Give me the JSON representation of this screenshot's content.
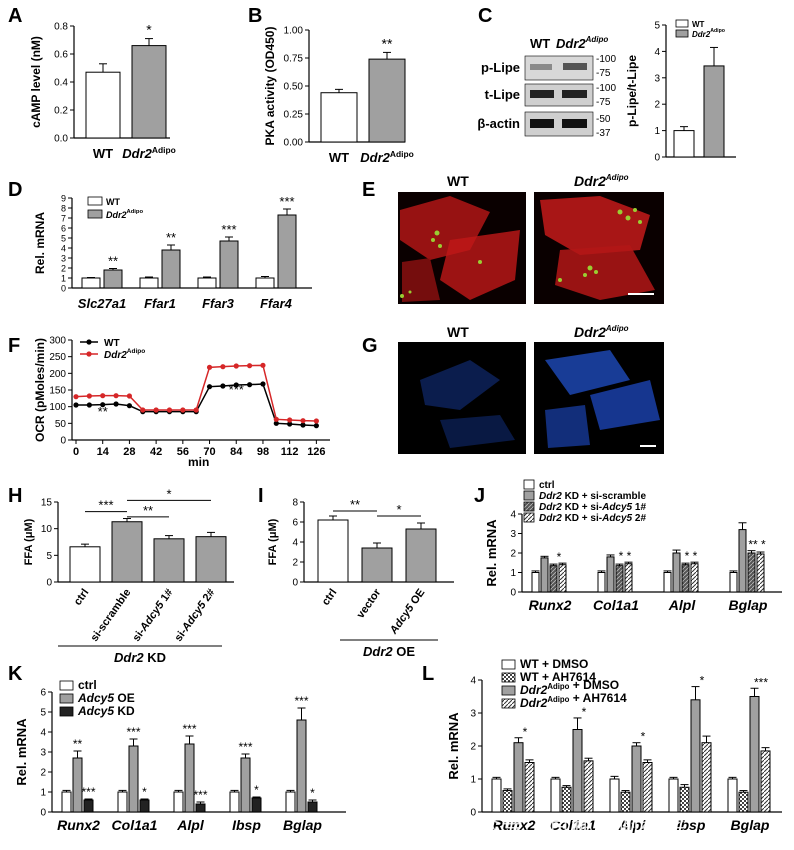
{
  "panels": [
    {
      "id": "A",
      "label": "A"
    },
    {
      "id": "B",
      "label": "B"
    },
    {
      "id": "C",
      "label": "C"
    },
    {
      "id": "D",
      "label": "D"
    },
    {
      "id": "E",
      "label": "E"
    },
    {
      "id": "F",
      "label": "F"
    },
    {
      "id": "G",
      "label": "G"
    },
    {
      "id": "H",
      "label": "H"
    },
    {
      "id": "I",
      "label": "I"
    },
    {
      "id": "J",
      "label": "J"
    },
    {
      "id": "K",
      "label": "K"
    },
    {
      "id": "L",
      "label": "L"
    }
  ],
  "strings": {
    "wt": "WT",
    "ddr2": "Ddr2",
    "adipo": "Adipo",
    "min": "min"
  },
  "blot": {
    "rows": [
      "p-Lipe",
      "t-Lipe",
      "β-actin"
    ],
    "markers": [
      [
        "-100",
        "-75"
      ],
      [
        "-100",
        "-75"
      ],
      [
        "-50",
        "-37"
      ]
    ]
  },
  "images": {
    "scale_bar": true
  },
  "watermark": "众号 · 百趣代谢组学",
  "colors": {
    "open": "#ffffff",
    "grey": "#a0a0a0",
    "dark": "#222222",
    "red": "#d62728",
    "black": "#000000",
    "blue": "#1f4fbf"
  },
  "chart_data": [
    {
      "id": "A",
      "type": "bar",
      "categories": [
        "WT",
        "Ddr2Adipo"
      ],
      "values": [
        0.47,
        0.66
      ],
      "errors": [
        0.06,
        0.05
      ],
      "ylabel": "cAMP level (nM)",
      "ylim": [
        0,
        0.8
      ],
      "yticks": [
        0.0,
        0.2,
        0.4,
        0.6,
        0.8
      ],
      "sig": [
        null,
        "*"
      ],
      "fills": [
        "open",
        "grey"
      ]
    },
    {
      "id": "B",
      "type": "bar",
      "categories": [
        "WT",
        "Ddr2Adipo"
      ],
      "values": [
        0.44,
        0.74
      ],
      "errors": [
        0.03,
        0.06
      ],
      "ylabel": "PKA activity (OD450)",
      "ylim": [
        0,
        1.0
      ],
      "yticks": [
        0.0,
        0.25,
        0.5,
        0.75,
        1.0
      ],
      "sig": [
        null,
        "**"
      ],
      "fills": [
        "open",
        "grey"
      ]
    },
    {
      "id": "C",
      "type": "bar",
      "categories": [
        "WT",
        "Ddr2Adipo"
      ],
      "values": [
        1.0,
        3.45
      ],
      "errors": [
        0.15,
        0.7
      ],
      "ylabel": "p-Lipe/t-Lipe",
      "ylim": [
        0,
        5
      ],
      "yticks": [
        0,
        1,
        2,
        3,
        4,
        5
      ],
      "legend": [
        "WT",
        "Ddr2Adipo"
      ],
      "fills": [
        "open",
        "grey"
      ]
    },
    {
      "id": "D",
      "type": "bar",
      "categories": [
        "Slc27a1",
        "Ffar1",
        "Ffar3",
        "Ffar4"
      ],
      "series": [
        {
          "name": "WT",
          "values": [
            1.0,
            1.0,
            1.0,
            1.0
          ],
          "errors": [
            0.05,
            0.1,
            0.1,
            0.15
          ]
        },
        {
          "name": "Ddr2Adipo",
          "values": [
            1.8,
            3.8,
            4.7,
            7.3
          ],
          "errors": [
            0.15,
            0.5,
            0.4,
            0.6
          ]
        }
      ],
      "ylabel": "Rel. mRNA",
      "ylim": [
        0,
        9
      ],
      "yticks": [
        0,
        1,
        2,
        3,
        4,
        5,
        6,
        7,
        8,
        9
      ],
      "sig": [
        "**",
        "**",
        "***",
        "***"
      ]
    },
    {
      "id": "F",
      "type": "line",
      "ylabel": "OCR (pMoles/min)",
      "xlabel": "min",
      "ylim": [
        0,
        300
      ],
      "yticks": [
        0,
        50,
        100,
        150,
        200,
        250,
        300
      ],
      "xticks": [
        0,
        14,
        28,
        42,
        56,
        70,
        84,
        98,
        112,
        126
      ],
      "series": [
        {
          "name": "WT",
          "x": [
            0,
            7,
            14,
            21,
            28,
            35,
            42,
            49,
            56,
            63,
            70,
            77,
            84,
            91,
            98,
            105,
            112,
            119,
            126
          ],
          "y": [
            105,
            105,
            106,
            108,
            103,
            85,
            85,
            85,
            85,
            85,
            160,
            162,
            165,
            166,
            168,
            50,
            48,
            45,
            43
          ]
        },
        {
          "name": "Ddr2Adipo",
          "x": [
            0,
            7,
            14,
            21,
            28,
            35,
            42,
            49,
            56,
            63,
            70,
            77,
            84,
            91,
            98,
            105,
            112,
            119,
            126
          ],
          "y": [
            130,
            132,
            133,
            133,
            132,
            90,
            90,
            90,
            90,
            90,
            218,
            220,
            222,
            223,
            224,
            62,
            60,
            58,
            57
          ]
        }
      ],
      "annotations": [
        "**",
        "***"
      ]
    },
    {
      "id": "H",
      "type": "bar",
      "categories": [
        "ctrl",
        "si-scramble",
        "si-Adcy5 1#",
        "si-Adcy5 2#"
      ],
      "values": [
        6.6,
        11.3,
        8.1,
        8.5
      ],
      "errors": [
        0.5,
        0.6,
        0.6,
        0.8
      ],
      "ylabel": "FFA (μM)",
      "ylim": [
        0,
        15
      ],
      "yticks": [
        0,
        5,
        10,
        15
      ],
      "fills": [
        "open",
        "grey",
        "grey",
        "grey"
      ],
      "group_label": "Ddr2 KD",
      "sig": [
        "***",
        "**",
        "*"
      ]
    },
    {
      "id": "I",
      "type": "bar",
      "categories": [
        "ctrl",
        "vector",
        "Adcy5 OE"
      ],
      "values": [
        6.2,
        3.4,
        5.3
      ],
      "errors": [
        0.4,
        0.5,
        0.6
      ],
      "ylabel": "FFA (μM)",
      "ylim": [
        0,
        8
      ],
      "yticks": [
        0,
        2,
        4,
        6,
        8
      ],
      "fills": [
        "open",
        "grey",
        "grey"
      ],
      "group_label": "Ddr2 OE",
      "sig": [
        "**",
        "*"
      ]
    },
    {
      "id": "J",
      "type": "bar",
      "categories": [
        "Runx2",
        "Col1a1",
        "Alpl",
        "Bglap"
      ],
      "series": [
        {
          "name": "ctrl",
          "values": [
            1.0,
            1.0,
            1.0,
            1.0
          ],
          "errors": [
            0.08,
            0.08,
            0.08,
            0.08
          ]
        },
        {
          "name": "Ddr2 KD + si-scramble",
          "values": [
            1.75,
            1.8,
            2.0,
            3.2
          ],
          "errors": [
            0.08,
            0.1,
            0.15,
            0.35
          ]
        },
        {
          "name": "Ddr2 KD + si-Adcy5 1#",
          "values": [
            1.35,
            1.35,
            1.4,
            2.0
          ],
          "errors": [
            0.08,
            0.08,
            0.08,
            0.12
          ]
        },
        {
          "name": "Ddr2 KD + si-Adcy5 2#",
          "values": [
            1.4,
            1.45,
            1.45,
            1.95
          ],
          "errors": [
            0.08,
            0.08,
            0.08,
            0.1
          ]
        }
      ],
      "ylabel": "Rel. mRNA",
      "ylim": [
        0,
        4
      ],
      "yticks": [
        0,
        1,
        2,
        3,
        4
      ],
      "sig": [
        "*",
        "* *",
        "* *",
        "** *"
      ]
    },
    {
      "id": "K",
      "type": "bar",
      "categories": [
        "Runx2",
        "Col1a1",
        "Alpl",
        "Ibsp",
        "Bglap"
      ],
      "series": [
        {
          "name": "ctrl",
          "values": [
            1.0,
            1.0,
            1.0,
            1.0,
            1.0
          ],
          "errors": [
            0.08,
            0.08,
            0.08,
            0.08,
            0.08
          ]
        },
        {
          "name": "Adcy5 OE",
          "values": [
            2.7,
            3.3,
            3.4,
            2.7,
            4.6
          ],
          "errors": [
            0.35,
            0.35,
            0.4,
            0.2,
            0.6
          ]
        },
        {
          "name": "Adcy5 KD",
          "values": [
            0.6,
            0.6,
            0.4,
            0.7,
            0.5
          ],
          "errors": [
            0.05,
            0.05,
            0.1,
            0.05,
            0.1
          ]
        }
      ],
      "ylabel": "Rel. mRNA",
      "ylim": [
        0,
        6
      ],
      "yticks": [
        0,
        1,
        2,
        3,
        4,
        5,
        6
      ],
      "sig_hi": [
        "**",
        "***",
        "***",
        "***",
        "***"
      ],
      "sig_lo": [
        "***",
        "*",
        "***",
        "*",
        "*"
      ]
    },
    {
      "id": "L",
      "type": "bar",
      "categories": [
        "Runx2",
        "Col1a1",
        "Alpl",
        "Ibsp",
        "Bglap"
      ],
      "series": [
        {
          "name": "WT + DMSO",
          "values": [
            1.0,
            1.0,
            1.0,
            1.0,
            1.0
          ],
          "errors": [
            0.05,
            0.05,
            0.08,
            0.05,
            0.05
          ]
        },
        {
          "name": "WT + AH7614",
          "values": [
            0.65,
            0.75,
            0.6,
            0.75,
            0.6
          ],
          "errors": [
            0.05,
            0.05,
            0.05,
            0.08,
            0.05
          ]
        },
        {
          "name": "Ddr2Adipo + DMSO",
          "values": [
            2.1,
            2.5,
            2.0,
            3.4,
            3.5
          ],
          "errors": [
            0.15,
            0.35,
            0.1,
            0.4,
            0.25
          ]
        },
        {
          "name": "Ddr2Adipo + AH7614",
          "values": [
            1.5,
            1.55,
            1.5,
            2.1,
            1.85
          ],
          "errors": [
            0.08,
            0.08,
            0.08,
            0.2,
            0.1
          ]
        }
      ],
      "ylabel": "Rel. mRNA",
      "ylim": [
        0,
        4
      ],
      "yticks": [
        0,
        1,
        2,
        3,
        4
      ],
      "sig": [
        "*",
        "*",
        "*",
        "*",
        "***"
      ]
    }
  ]
}
